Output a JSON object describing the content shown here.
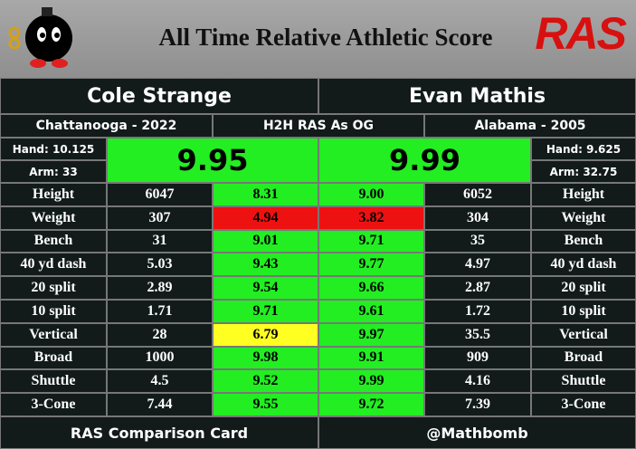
{
  "header": {
    "title": "All Time Relative Athletic Score",
    "logo": "RAS"
  },
  "left": {
    "name": "Cole Strange",
    "school": "Chattanooga - 2022",
    "hand": "Hand: 10.125",
    "arm": "Arm: 33",
    "score": "9.95",
    "score_color": "#22ee22"
  },
  "middle": {
    "label": "H2H RAS As OG"
  },
  "right": {
    "name": "Evan Mathis",
    "school": "Alabama - 2005",
    "hand": "Hand: 9.625",
    "arm": "Arm: 32.75",
    "score": "9.99",
    "score_color": "#22ee22"
  },
  "rows": [
    {
      "label": "Height",
      "left": "6047",
      "left_score": "8.31",
      "left_color": "#22ee22",
      "right_score": "9.00",
      "right_color": "#22ee22",
      "right": "6052"
    },
    {
      "label": "Weight",
      "left": "307",
      "left_score": "4.94",
      "left_color": "#ee1111",
      "right_score": "3.82",
      "right_color": "#ee1111",
      "right": "304"
    },
    {
      "label": "Bench",
      "left": "31",
      "left_score": "9.01",
      "left_color": "#22ee22",
      "right_score": "9.71",
      "right_color": "#22ee22",
      "right": "35"
    },
    {
      "label": "40 yd dash",
      "left": "5.03",
      "left_score": "9.43",
      "left_color": "#22ee22",
      "right_score": "9.77",
      "right_color": "#22ee22",
      "right": "4.97"
    },
    {
      "label": "20 split",
      "left": "2.89",
      "left_score": "9.54",
      "left_color": "#22ee22",
      "right_score": "9.66",
      "right_color": "#22ee22",
      "right": "2.87"
    },
    {
      "label": "10 split",
      "left": "1.71",
      "left_score": "9.71",
      "left_color": "#22ee22",
      "right_score": "9.61",
      "right_color": "#22ee22",
      "right": "1.72"
    },
    {
      "label": "Vertical",
      "left": "28",
      "left_score": "6.79",
      "left_color": "#ffff22",
      "right_score": "9.97",
      "right_color": "#22ee22",
      "right": "35.5"
    },
    {
      "label": "Broad",
      "left": "1000",
      "left_score": "9.98",
      "left_color": "#22ee22",
      "right_score": "9.91",
      "right_color": "#22ee22",
      "right": "909"
    },
    {
      "label": "Shuttle",
      "left": "4.5",
      "left_score": "9.52",
      "left_color": "#22ee22",
      "right_score": "9.99",
      "right_color": "#22ee22",
      "right": "4.16"
    },
    {
      "label": "3-Cone",
      "left": "7.44",
      "left_score": "9.55",
      "left_color": "#22ee22",
      "right_score": "9.72",
      "right_color": "#22ee22",
      "right": "7.39"
    }
  ],
  "footer": {
    "left": "RAS Comparison Card",
    "right": "@Mathbomb"
  }
}
